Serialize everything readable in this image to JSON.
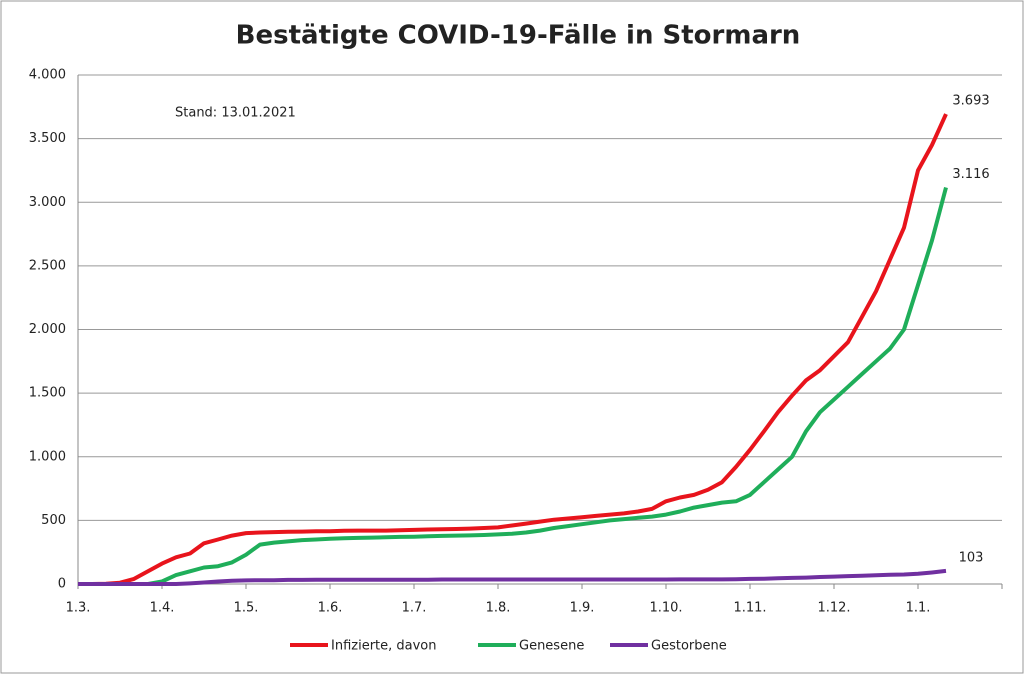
{
  "chart_data": {
    "type": "line",
    "title": "Bestätigte COVID-19-Fälle in Stormarn",
    "annotation": "Stand: 13.01.2021",
    "categories": [
      "1.3.",
      null,
      null,
      null,
      null,
      null,
      "1.4.",
      null,
      null,
      null,
      null,
      null,
      "1.5.",
      null,
      null,
      null,
      null,
      null,
      "1.6.",
      null,
      null,
      null,
      null,
      null,
      "1.7.",
      null,
      null,
      null,
      null,
      null,
      "1.8.",
      null,
      null,
      null,
      null,
      null,
      "1.9.",
      null,
      null,
      null,
      null,
      null,
      "1.10.",
      null,
      null,
      null,
      null,
      null,
      "1.11.",
      null,
      null,
      null,
      null,
      null,
      "1.12.",
      null,
      null,
      null,
      null,
      null,
      "1.1.",
      null,
      null,
      null,
      null,
      null,
      null
    ],
    "series": [
      {
        "name": "Infizierte, davon",
        "color": "#e8141c",
        "values": [
          0,
          0,
          2,
          10,
          40,
          100,
          160,
          210,
          240,
          320,
          350,
          380,
          400,
          405,
          408,
          410,
          412,
          415,
          415,
          418,
          420,
          420,
          420,
          422,
          425,
          428,
          430,
          432,
          435,
          440,
          445,
          460,
          475,
          490,
          505,
          515,
          525,
          535,
          545,
          555,
          570,
          590,
          650,
          680,
          700,
          740,
          800,
          920,
          1055,
          1200,
          1350,
          1480,
          1600,
          1680,
          1790,
          1900,
          2100,
          2300,
          2550,
          2800,
          3250,
          3450,
          3693,
          null,
          null,
          null,
          null
        ],
        "value_labels": [
          null,
          null,
          null,
          null,
          null,
          null,
          null,
          null,
          null,
          null,
          null,
          null,
          null,
          null,
          null,
          null,
          null,
          null,
          null,
          null,
          null,
          null,
          null,
          null,
          null,
          null,
          null,
          null,
          null,
          null,
          null,
          null,
          null,
          null,
          null,
          null,
          null,
          null,
          null,
          null,
          null,
          null,
          null,
          null,
          null,
          null,
          null,
          null,
          null,
          null,
          null,
          null,
          null,
          null,
          null,
          null,
          null,
          null,
          null,
          null,
          null,
          null,
          "3.693",
          null,
          null,
          null,
          null
        ]
      },
      {
        "name": "Genesene",
        "color": "#1fae5a",
        "values": [
          0,
          0,
          0,
          0,
          0,
          0,
          20,
          70,
          100,
          130,
          140,
          170,
          230,
          310,
          325,
          335,
          345,
          350,
          355,
          360,
          362,
          365,
          368,
          370,
          372,
          375,
          378,
          380,
          382,
          385,
          390,
          395,
          405,
          420,
          440,
          455,
          470,
          485,
          500,
          510,
          520,
          530,
          545,
          570,
          600,
          620,
          640,
          650,
          700,
          800,
          900,
          1000,
          1200,
          1350,
          1450,
          1550,
          1650,
          1750,
          1850,
          2000,
          2350,
          2700,
          3116,
          null,
          null,
          null,
          null
        ],
        "value_labels": [
          null,
          null,
          null,
          null,
          null,
          null,
          null,
          null,
          null,
          null,
          null,
          null,
          null,
          null,
          null,
          null,
          null,
          null,
          null,
          null,
          null,
          null,
          null,
          null,
          null,
          null,
          null,
          null,
          null,
          null,
          null,
          null,
          null,
          null,
          null,
          null,
          null,
          null,
          null,
          null,
          null,
          null,
          null,
          null,
          null,
          null,
          null,
          null,
          null,
          null,
          null,
          null,
          null,
          null,
          null,
          null,
          null,
          null,
          null,
          null,
          null,
          null,
          "3.116",
          null,
          null,
          null,
          null
        ]
      },
      {
        "name": "Gestorbene",
        "color": "#7030a0",
        "values": [
          0,
          0,
          0,
          0,
          0,
          0,
          0,
          0,
          5,
          12,
          20,
          25,
          28,
          30,
          30,
          32,
          32,
          33,
          33,
          33,
          34,
          34,
          34,
          34,
          34,
          34,
          35,
          35,
          35,
          35,
          35,
          35,
          35,
          35,
          35,
          35,
          35,
          35,
          35,
          35,
          35,
          35,
          35,
          36,
          36,
          36,
          36,
          37,
          40,
          42,
          45,
          48,
          50,
          55,
          58,
          62,
          65,
          68,
          72,
          75,
          80,
          90,
          103,
          null,
          null,
          null,
          null
        ],
        "value_labels": [
          null,
          null,
          null,
          null,
          null,
          null,
          null,
          null,
          null,
          null,
          null,
          null,
          null,
          null,
          null,
          null,
          null,
          null,
          null,
          null,
          null,
          null,
          null,
          null,
          null,
          null,
          null,
          null,
          null,
          null,
          null,
          null,
          null,
          null,
          null,
          null,
          null,
          null,
          null,
          null,
          null,
          null,
          null,
          null,
          null,
          null,
          null,
          null,
          null,
          null,
          null,
          null,
          null,
          null,
          null,
          null,
          null,
          null,
          null,
          null,
          null,
          null,
          "103",
          null,
          null,
          null,
          null
        ]
      }
    ],
    "ylim": [
      0,
      4000
    ],
    "yticks": [
      0,
      500,
      {
        "value": 1000,
        "label": "1.000"
      },
      {
        "value": 1500,
        "label": "1.500"
      },
      {
        "value": 2000,
        "label": "2.000"
      },
      {
        "value": 2500,
        "label": "2.500"
      },
      {
        "value": 3000,
        "label": "3.000"
      },
      {
        "value": 3500,
        "label": "3.500"
      },
      {
        "value": 4000,
        "label": "4.000"
      }
    ],
    "grid": true,
    "legend": "bottom"
  }
}
